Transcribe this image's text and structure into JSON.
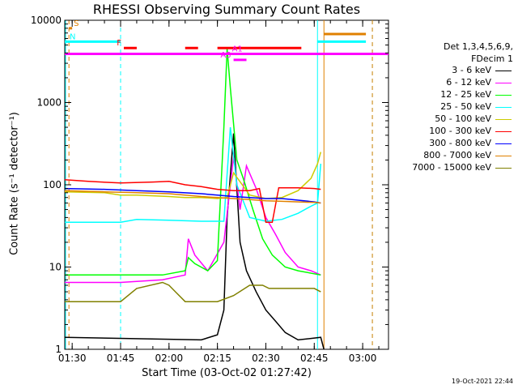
{
  "chart_data": {
    "type": "line",
    "title": "RHESSI Observing Summary Count Rates",
    "xlabel": "Start Time (03-Oct-02 01:27:42)",
    "ylabel": "Count Rate (s⁻¹ detector⁻¹)",
    "yscale": "log",
    "ylim": [
      1,
      10000
    ],
    "xlim": [
      "01:27:42",
      "03:08:00"
    ],
    "x_ticks": [
      "01:30",
      "01:45",
      "02:00",
      "02:15",
      "02:30",
      "02:45",
      "03:00"
    ],
    "y_ticks": [
      "1",
      "10",
      "100",
      "1000",
      "10000"
    ],
    "legend_header": [
      "Det 1,3,4,5,6,9,",
      "FDecim 1"
    ],
    "legend_position": "right",
    "footer": "19-Oct-2021 22:44",
    "series": [
      {
        "name": "3 - 6 keV",
        "color": "#000000",
        "x": [
          "01:27:42",
          "02:10",
          "02:15",
          "02:17",
          "02:18",
          "02:20",
          "02:22",
          "02:24",
          "02:27",
          "02:30",
          "02:33",
          "02:36",
          "02:40",
          "02:47",
          "02:48"
        ],
        "y": [
          1.4,
          1.3,
          1.5,
          3,
          40,
          420,
          20,
          9,
          5,
          3,
          2.2,
          1.6,
          1.3,
          1.4,
          1
        ]
      },
      {
        "name": "6 - 12 keV",
        "color": "#ff00ff",
        "x": [
          "01:27:42",
          "01:45",
          "01:58",
          "02:05",
          "02:06",
          "02:08",
          "02:12",
          "02:17",
          "02:20",
          "02:22",
          "02:24",
          "02:27",
          "02:30",
          "02:33",
          "02:36",
          "02:40",
          "02:44",
          "02:47"
        ],
        "y": [
          6.5,
          6.5,
          7,
          8,
          22,
          14,
          9,
          20,
          220,
          50,
          170,
          90,
          40,
          25,
          15,
          10,
          9,
          8
        ]
      },
      {
        "name": "12 - 25 keV",
        "color": "#00ff00",
        "x": [
          "01:27:42",
          "01:45",
          "01:58",
          "02:05",
          "02:06",
          "02:08",
          "02:12",
          "02:15",
          "02:17",
          "02:18",
          "02:19",
          "02:21",
          "02:23",
          "02:26",
          "02:29",
          "02:32",
          "02:36",
          "02:40",
          "02:47"
        ],
        "y": [
          8,
          8,
          8,
          9,
          13,
          11,
          9,
          12,
          500,
          4500,
          1500,
          200,
          120,
          50,
          22,
          14,
          10,
          9,
          8
        ]
      },
      {
        "name": "25 - 50 keV",
        "color": "#00ffff",
        "x": [
          "01:27:42",
          "01:45",
          "01:50",
          "02:00",
          "02:10",
          "02:15",
          "02:17",
          "02:19",
          "02:21",
          "02:25",
          "02:30",
          "02:35",
          "02:40",
          "02:44",
          "02:46",
          "02:47"
        ],
        "y": [
          35,
          35,
          38,
          37,
          36,
          36,
          36,
          500,
          100,
          40,
          36,
          38,
          45,
          55,
          60,
          180
        ]
      },
      {
        "name": "50 - 100 keV",
        "color": "#cccc00",
        "x": [
          "01:27:42",
          "01:40",
          "01:45",
          "01:50",
          "02:00",
          "02:05",
          "02:10",
          "02:15",
          "02:18",
          "02:20",
          "02:25",
          "02:30",
          "02:35",
          "02:40",
          "02:44",
          "02:46",
          "02:47"
        ],
        "y": [
          82,
          80,
          75,
          75,
          72,
          70,
          70,
          68,
          70,
          140,
          75,
          68,
          70,
          85,
          120,
          180,
          250
        ]
      },
      {
        "name": "100 - 300 keV",
        "color": "#ff0000",
        "x": [
          "01:27:42",
          "01:35",
          "01:45",
          "01:55",
          "02:00",
          "02:05",
          "02:10",
          "02:15",
          "02:20",
          "02:25",
          "02:28",
          "02:30",
          "02:32",
          "02:34",
          "02:40",
          "02:45",
          "02:47"
        ],
        "y": [
          115,
          110,
          105,
          108,
          110,
          100,
          95,
          88,
          85,
          85,
          90,
          35,
          35,
          92,
          92,
          90,
          88
        ]
      },
      {
        "name": "300 - 800 keV",
        "color": "#0000ff",
        "x": [
          "01:27:42",
          "01:40",
          "01:50",
          "02:00",
          "02:10",
          "02:15",
          "02:20",
          "02:25",
          "02:30",
          "02:35",
          "02:40",
          "02:45",
          "02:47"
        ],
        "y": [
          90,
          88,
          85,
          82,
          78,
          75,
          72,
          70,
          68,
          68,
          65,
          62,
          60
        ]
      },
      {
        "name": "800 - 7000 keV",
        "color": "#e08000",
        "x": [
          "01:27:42",
          "01:40",
          "01:50",
          "02:00",
          "02:10",
          "02:15",
          "02:20",
          "02:25",
          "02:30",
          "02:35",
          "02:40",
          "02:45",
          "02:47"
        ],
        "y": [
          85,
          82,
          80,
          78,
          72,
          70,
          68,
          66,
          64,
          63,
          62,
          61,
          60
        ]
      },
      {
        "name": "7000 - 15000 keV",
        "color": "#808000",
        "x": [
          "01:27:42",
          "01:45",
          "01:50",
          "01:58",
          "02:00",
          "02:02",
          "02:05",
          "02:10",
          "02:15",
          "02:20",
          "02:25",
          "02:27",
          "02:29",
          "02:31",
          "02:35",
          "02:40",
          "02:45",
          "02:47"
        ],
        "y": [
          3.8,
          3.8,
          5.5,
          6.5,
          6,
          5,
          3.8,
          3.8,
          3.8,
          4.5,
          6,
          6,
          6,
          5.5,
          5.5,
          5.5,
          5.5,
          5
        ]
      }
    ],
    "flag_bars": [
      {
        "label": "S",
        "color": "#e08000",
        "y": 8000,
        "x": [
          "01:29",
          "01:30"
        ]
      },
      {
        "label": "N",
        "color": "#00ffff",
        "y": 5500,
        "x": [
          "01:27:42",
          "01:45"
        ]
      },
      {
        "label": "",
        "color": "#00ffff",
        "y": 5500,
        "x": [
          "02:46",
          "03:01"
        ]
      },
      {
        "label": "",
        "color": "#e08000",
        "y": 6800,
        "x": [
          "02:48",
          "03:01"
        ]
      },
      {
        "label": "F",
        "color": "#ff0000",
        "y": 4600,
        "x": [
          "01:46",
          "01:50"
        ]
      },
      {
        "label": "",
        "color": "#ff0000",
        "y": 4600,
        "x": [
          "02:05",
          "02:09"
        ]
      },
      {
        "label": "",
        "color": "#ff0000",
        "y": 4600,
        "x": [
          "02:15",
          "02:41"
        ]
      },
      {
        "label": "",
        "color": "#ff00ff",
        "y": 3900,
        "x": [
          "01:27:42",
          "03:08"
        ]
      },
      {
        "label": "A1",
        "color": "#ff00ff",
        "y": 3900,
        "x": [
          "02:18",
          "02:23"
        ]
      },
      {
        "label": "A3",
        "color": "#ff00ff",
        "y": 3300,
        "x": [
          "02:20",
          "02:24"
        ]
      }
    ],
    "vertical_lines": [
      {
        "x": "01:27:42",
        "color": "#00ffff",
        "style": "solid"
      },
      {
        "x": "01:29",
        "color": "#e08000",
        "style": "dashed"
      },
      {
        "x": "01:45",
        "color": "#00ffff",
        "style": "dashed"
      },
      {
        "x": "02:46",
        "color": "#00ffff",
        "style": "solid"
      },
      {
        "x": "02:48",
        "color": "#e08000",
        "style": "solid"
      },
      {
        "x": "03:03",
        "color": "#00ffff",
        "style": "dashed"
      },
      {
        "x": "03:03",
        "color": "#e08000",
        "style": "dashed"
      }
    ]
  }
}
